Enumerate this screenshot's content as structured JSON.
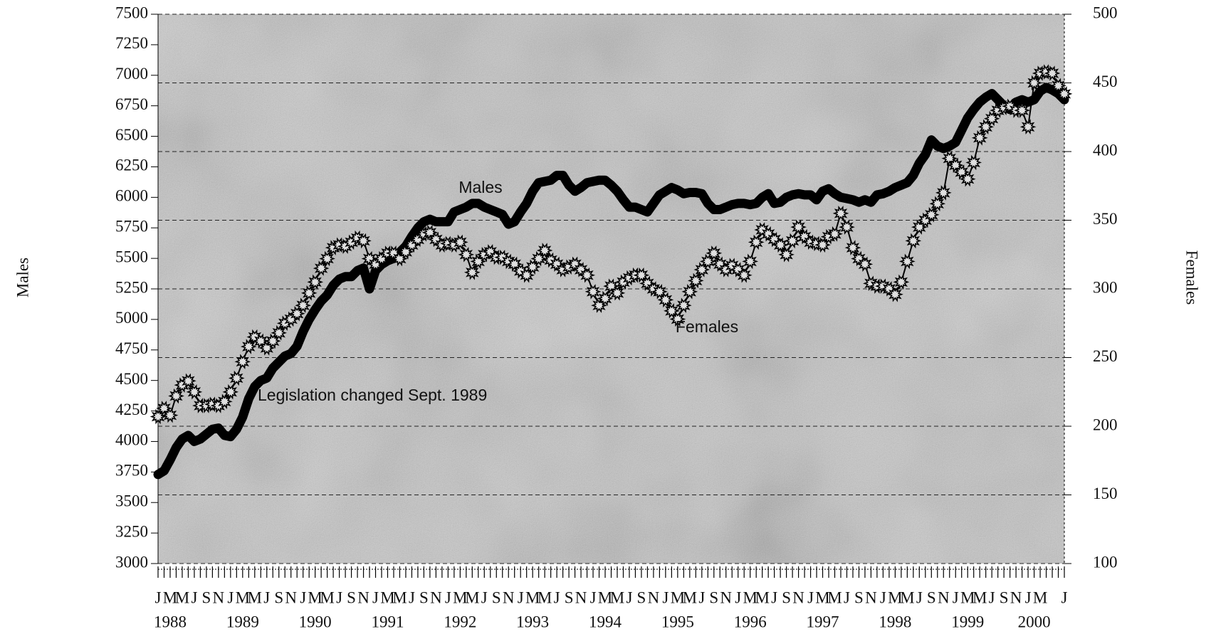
{
  "chart_data": {
    "type": "line",
    "y_label": "Males",
    "y2_label": "Females",
    "annotations": [
      "Legislation changed Sept. 1989"
    ],
    "categories": [
      "J",
      null,
      "M",
      null,
      "M",
      null,
      "J",
      null,
      "S",
      null,
      "N",
      null,
      "J",
      null,
      "M",
      null,
      "M",
      null,
      "J",
      null,
      "S",
      null,
      "N",
      null,
      "J",
      null,
      "M",
      null,
      "M",
      null,
      "J",
      null,
      "S",
      null,
      "N",
      null,
      "J",
      null,
      "M",
      null,
      "M",
      null,
      "J",
      null,
      "S",
      null,
      "N",
      null,
      "J",
      null,
      "M",
      null,
      "M",
      null,
      "J",
      null,
      "S",
      null,
      "N",
      null,
      "J",
      null,
      "M",
      null,
      "M",
      null,
      "J",
      null,
      "S",
      null,
      "N",
      null,
      "J",
      null,
      "M",
      null,
      "M",
      null,
      "J",
      null,
      "S",
      null,
      "N",
      null,
      "J",
      null,
      "M",
      null,
      "M",
      null,
      "J",
      null,
      "S",
      null,
      "N",
      null,
      "J",
      null,
      "M",
      null,
      "M",
      null,
      "J",
      null,
      "S",
      null,
      "N",
      null,
      "J",
      null,
      "M",
      null,
      "M",
      null,
      "J",
      null,
      "S",
      null,
      "N",
      null,
      "J",
      null,
      "M",
      null,
      "M",
      null,
      "J",
      null,
      "S",
      null,
      "N",
      null,
      "J",
      null,
      "M",
      null,
      "M",
      null,
      "J",
      null,
      "S",
      null,
      "N",
      null,
      "J",
      null,
      "M",
      null,
      null,
      null,
      "J"
    ],
    "years": [
      "1988",
      "1989",
      "1990",
      "1991",
      "1992",
      "1993",
      "1994",
      "1995",
      "1996",
      "1997",
      "1998",
      "1999",
      "2000"
    ],
    "series": [
      {
        "name": "Males",
        "color": "#000000",
        "axis": "y",
        "values": [
          3730,
          3760,
          3850,
          3950,
          4020,
          4050,
          4000,
          4020,
          4060,
          4100,
          4110,
          4050,
          4040,
          4100,
          4200,
          4350,
          4450,
          4500,
          4520,
          4600,
          4650,
          4700,
          4720,
          4780,
          4900,
          5000,
          5080,
          5150,
          5200,
          5280,
          5330,
          5350,
          5350,
          5400,
          5420,
          5250,
          5400,
          5450,
          5480,
          5500,
          5550,
          5600,
          5680,
          5750,
          5800,
          5820,
          5800,
          5800,
          5800,
          5880,
          5900,
          5920,
          5950,
          5950,
          5920,
          5900,
          5880,
          5860,
          5780,
          5800,
          5880,
          5950,
          6050,
          6120,
          6130,
          6140,
          6180,
          6180,
          6100,
          6050,
          6080,
          6120,
          6130,
          6140,
          6140,
          6100,
          6050,
          5980,
          5920,
          5920,
          5900,
          5880,
          5950,
          6020,
          6050,
          6080,
          6060,
          6030,
          6040,
          6040,
          6030,
          5950,
          5900,
          5900,
          5920,
          5940,
          5950,
          5950,
          5940,
          5950,
          6000,
          6030,
          5950,
          5960,
          6000,
          6020,
          6030,
          6020,
          6020,
          5980,
          6050,
          6070,
          6030,
          6000,
          5990,
          5980,
          5960,
          5980,
          5960,
          6020,
          6030,
          6050,
          6080,
          6100,
          6120,
          6180,
          6280,
          6350,
          6470,
          6420,
          6400,
          6420,
          6450,
          6550,
          6650,
          6720,
          6780,
          6820,
          6850,
          6800,
          6750,
          6720,
          6780,
          6800,
          6780,
          6800,
          6870,
          6900,
          6880,
          6850,
          6800
        ]
      },
      {
        "name": "Females",
        "color": "#000000",
        "axis": "y2",
        "values": [
          207,
          213,
          208,
          222,
          230,
          233,
          225,
          215,
          215,
          216,
          215,
          218,
          225,
          235,
          247,
          258,
          265,
          262,
          257,
          262,
          268,
          275,
          278,
          282,
          288,
          297,
          305,
          315,
          322,
          330,
          332,
          331,
          334,
          337,
          335,
          322,
          318,
          322,
          326,
          326,
          322,
          327,
          332,
          336,
          340,
          341,
          336,
          332,
          333,
          332,
          334,
          325,
          312,
          320,
          325,
          327,
          323,
          323,
          320,
          318,
          313,
          310,
          316,
          322,
          328,
          321,
          318,
          314,
          316,
          318,
          314,
          310,
          298,
          288,
          293,
          302,
          297,
          305,
          308,
          310,
          310,
          304,
          300,
          298,
          292,
          284,
          278,
          288,
          298,
          306,
          314,
          320,
          326,
          318,
          314,
          317,
          314,
          310,
          320,
          334,
          343,
          340,
          336,
          332,
          325,
          335,
          345,
          338,
          334,
          333,
          332,
          338,
          340,
          355,
          345,
          330,
          322,
          318,
          304,
          302,
          302,
          300,
          296,
          305,
          320,
          335,
          345,
          350,
          354,
          362,
          370,
          395,
          390,
          385,
          380,
          392,
          410,
          418,
          424,
          430,
          432,
          433,
          430,
          430,
          418,
          450,
          457,
          458,
          457,
          448,
          442
        ]
      }
    ],
    "ylim": [
      3000,
      7500
    ],
    "yticks": [
      3000,
      3250,
      3500,
      3750,
      4000,
      4250,
      4500,
      4750,
      5000,
      5250,
      5500,
      5750,
      6000,
      6250,
      6500,
      6750,
      7000,
      7250,
      7500
    ],
    "y2lim": [
      100,
      500
    ],
    "y2ticks": [
      100,
      150,
      200,
      250,
      300,
      350,
      400,
      450,
      500
    ],
    "grid": true,
    "background": "#c4c4c4"
  }
}
